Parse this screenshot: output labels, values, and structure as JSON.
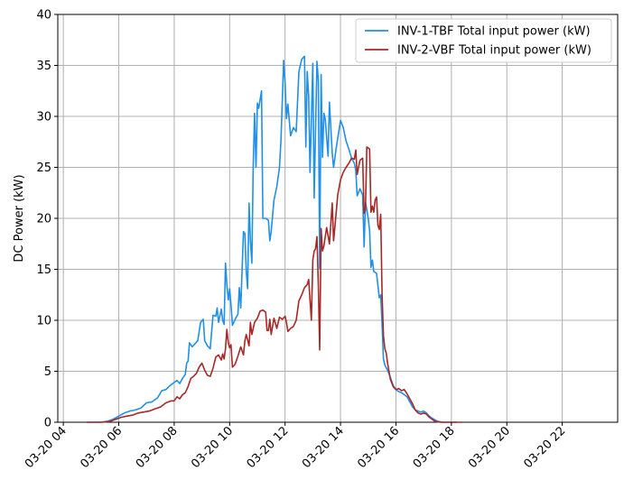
{
  "chart_data": {
    "type": "line",
    "ylabel": "DC Power (kW)",
    "xlabel": "",
    "x_unit": "hour of day (2020-03-20)",
    "xlim": [
      3.8,
      24.0
    ],
    "ylim": [
      0,
      40
    ],
    "yticks": [
      0,
      5,
      10,
      15,
      20,
      25,
      30,
      35,
      40
    ],
    "xticks": [
      {
        "value": 4,
        "label": "03-20 04"
      },
      {
        "value": 6,
        "label": "03-20 06"
      },
      {
        "value": 8,
        "label": "03-20 08"
      },
      {
        "value": 10,
        "label": "03-20 10"
      },
      {
        "value": 12,
        "label": "03-20 12"
      },
      {
        "value": 14,
        "label": "03-20 14"
      },
      {
        "value": 16,
        "label": "03-20 16"
      },
      {
        "value": 18,
        "label": "03-20 18"
      },
      {
        "value": 20,
        "label": "03-20 20"
      },
      {
        "value": 22,
        "label": "03-20 22"
      }
    ],
    "grid": true,
    "legend_position": "upper-right",
    "series": [
      {
        "name": "INV-1-TBF Total input power (kW)",
        "color": "#2090e8",
        "points": [
          [
            4.85,
            0
          ],
          [
            5.3,
            0
          ],
          [
            5.6,
            0.1
          ],
          [
            5.8,
            0.3
          ],
          [
            6.0,
            0.6
          ],
          [
            6.2,
            0.9
          ],
          [
            6.4,
            1.1
          ],
          [
            6.6,
            1.2
          ],
          [
            6.8,
            1.4
          ],
          [
            7.0,
            1.9
          ],
          [
            7.2,
            2.0
          ],
          [
            7.4,
            2.4
          ],
          [
            7.55,
            3.1
          ],
          [
            7.7,
            3.2
          ],
          [
            7.85,
            3.6
          ],
          [
            8.0,
            3.9
          ],
          [
            8.1,
            4.1
          ],
          [
            8.2,
            3.8
          ],
          [
            8.3,
            4.3
          ],
          [
            8.4,
            4.7
          ],
          [
            8.45,
            5.8
          ],
          [
            8.5,
            6.0
          ],
          [
            8.55,
            7.8
          ],
          [
            8.65,
            7.4
          ],
          [
            8.75,
            7.7
          ],
          [
            8.85,
            8.0
          ],
          [
            8.95,
            9.8
          ],
          [
            9.05,
            10.1
          ],
          [
            9.1,
            8.0
          ],
          [
            9.2,
            7.5
          ],
          [
            9.3,
            7.2
          ],
          [
            9.4,
            10.5
          ],
          [
            9.5,
            10.4
          ],
          [
            9.55,
            11.2
          ],
          [
            9.6,
            9.8
          ],
          [
            9.7,
            11.1
          ],
          [
            9.75,
            10.0
          ],
          [
            9.8,
            9.6
          ],
          [
            9.85,
            15.6
          ],
          [
            9.9,
            13.5
          ],
          [
            9.95,
            12.0
          ],
          [
            10.0,
            13.1
          ],
          [
            10.05,
            11.5
          ],
          [
            10.1,
            9.5
          ],
          [
            10.2,
            10.1
          ],
          [
            10.3,
            10.6
          ],
          [
            10.35,
            13.2
          ],
          [
            10.4,
            11.2
          ],
          [
            10.5,
            18.7
          ],
          [
            10.55,
            18.5
          ],
          [
            10.6,
            14.8
          ],
          [
            10.65,
            13.1
          ],
          [
            10.7,
            21.5
          ],
          [
            10.75,
            17.8
          ],
          [
            10.8,
            15.6
          ],
          [
            10.85,
            25.1
          ],
          [
            10.9,
            30.3
          ],
          [
            10.95,
            25.0
          ],
          [
            11.0,
            31.3
          ],
          [
            11.05,
            30.8
          ],
          [
            11.15,
            32.5
          ],
          [
            11.2,
            20.0
          ],
          [
            11.3,
            20.0
          ],
          [
            11.4,
            19.8
          ],
          [
            11.45,
            17.8
          ],
          [
            11.5,
            18.7
          ],
          [
            11.6,
            21.8
          ],
          [
            11.7,
            23.1
          ],
          [
            11.8,
            25.0
          ],
          [
            11.85,
            27.6
          ],
          [
            11.9,
            31.5
          ],
          [
            11.95,
            35.5
          ],
          [
            12.0,
            33.3
          ],
          [
            12.05,
            29.8
          ],
          [
            12.1,
            31.2
          ],
          [
            12.2,
            28.1
          ],
          [
            12.3,
            28.9
          ],
          [
            12.4,
            28.5
          ],
          [
            12.5,
            34.4
          ],
          [
            12.6,
            35.6
          ],
          [
            12.7,
            35.9
          ],
          [
            12.75,
            27.0
          ],
          [
            12.8,
            34.4
          ],
          [
            12.85,
            32.0
          ],
          [
            12.9,
            24.5
          ],
          [
            13.0,
            35.2
          ],
          [
            13.05,
            22.0
          ],
          [
            13.1,
            28.5
          ],
          [
            13.15,
            35.4
          ],
          [
            13.2,
            33.5
          ],
          [
            13.25,
            15.1
          ],
          [
            13.3,
            34.1
          ],
          [
            13.35,
            26.0
          ],
          [
            13.4,
            30.3
          ],
          [
            13.45,
            29.7
          ],
          [
            13.55,
            26.1
          ],
          [
            13.6,
            31.4
          ],
          [
            13.7,
            26.4
          ],
          [
            13.75,
            25.0
          ],
          [
            13.85,
            27.0
          ],
          [
            14.0,
            29.6
          ],
          [
            14.1,
            28.9
          ],
          [
            14.2,
            27.6
          ],
          [
            14.3,
            26.8
          ],
          [
            14.4,
            25.9
          ],
          [
            14.5,
            25.4
          ],
          [
            14.55,
            24.7
          ],
          [
            14.6,
            22.2
          ],
          [
            14.7,
            22.9
          ],
          [
            14.8,
            22.3
          ],
          [
            14.85,
            17.2
          ],
          [
            14.9,
            21.6
          ],
          [
            15.0,
            20.0
          ],
          [
            15.05,
            18.8
          ],
          [
            15.1,
            15.2
          ],
          [
            15.15,
            15.9
          ],
          [
            15.2,
            14.8
          ],
          [
            15.3,
            14.6
          ],
          [
            15.4,
            12.2
          ],
          [
            15.45,
            12.5
          ],
          [
            15.5,
            9.6
          ],
          [
            15.55,
            6.2
          ],
          [
            15.6,
            5.6
          ],
          [
            15.7,
            5.1
          ],
          [
            15.8,
            4.4
          ],
          [
            15.9,
            3.6
          ],
          [
            16.0,
            3.2
          ],
          [
            16.1,
            3.0
          ],
          [
            16.2,
            2.9
          ],
          [
            16.3,
            2.7
          ],
          [
            16.4,
            2.5
          ],
          [
            16.5,
            2.0
          ],
          [
            16.6,
            1.5
          ],
          [
            16.7,
            1.2
          ],
          [
            16.8,
            1.1
          ],
          [
            16.9,
            1.0
          ],
          [
            17.0,
            1.1
          ],
          [
            17.1,
            0.9
          ],
          [
            17.2,
            0.6
          ],
          [
            17.3,
            0.4
          ],
          [
            17.5,
            0.1
          ],
          [
            17.7,
            0
          ],
          [
            18.2,
            0
          ]
        ]
      },
      {
        "name": "INV-2-VBF Total input power (kW)",
        "color": "#a82828",
        "points": [
          [
            4.85,
            0
          ],
          [
            5.4,
            0
          ],
          [
            5.7,
            0.1
          ],
          [
            5.9,
            0.3
          ],
          [
            6.1,
            0.5
          ],
          [
            6.3,
            0.6
          ],
          [
            6.5,
            0.7
          ],
          [
            6.7,
            0.9
          ],
          [
            6.9,
            1.0
          ],
          [
            7.1,
            1.1
          ],
          [
            7.3,
            1.3
          ],
          [
            7.5,
            1.5
          ],
          [
            7.7,
            1.9
          ],
          [
            7.9,
            2.1
          ],
          [
            8.0,
            2.1
          ],
          [
            8.1,
            2.5
          ],
          [
            8.2,
            2.3
          ],
          [
            8.3,
            2.7
          ],
          [
            8.4,
            2.9
          ],
          [
            8.5,
            3.5
          ],
          [
            8.6,
            4.3
          ],
          [
            8.7,
            4.5
          ],
          [
            8.8,
            4.8
          ],
          [
            8.9,
            5.4
          ],
          [
            9.0,
            5.8
          ],
          [
            9.1,
            5.1
          ],
          [
            9.2,
            4.6
          ],
          [
            9.3,
            4.5
          ],
          [
            9.4,
            5.3
          ],
          [
            9.5,
            6.4
          ],
          [
            9.6,
            6.6
          ],
          [
            9.7,
            6.1
          ],
          [
            9.75,
            6.7
          ],
          [
            9.8,
            6.2
          ],
          [
            9.85,
            7.2
          ],
          [
            9.9,
            9.1
          ],
          [
            9.95,
            7.8
          ],
          [
            10.0,
            7.3
          ],
          [
            10.05,
            7.6
          ],
          [
            10.1,
            5.4
          ],
          [
            10.2,
            5.7
          ],
          [
            10.3,
            6.5
          ],
          [
            10.4,
            7.4
          ],
          [
            10.5,
            6.6
          ],
          [
            10.55,
            8.0
          ],
          [
            10.6,
            8.6
          ],
          [
            10.7,
            7.5
          ],
          [
            10.75,
            9.8
          ],
          [
            10.8,
            8.6
          ],
          [
            10.9,
            9.8
          ],
          [
            11.0,
            10.2
          ],
          [
            11.1,
            10.9
          ],
          [
            11.2,
            11.0
          ],
          [
            11.3,
            10.8
          ],
          [
            11.35,
            9.0
          ],
          [
            11.4,
            9.0
          ],
          [
            11.45,
            10.1
          ],
          [
            11.5,
            8.6
          ],
          [
            11.6,
            10.2
          ],
          [
            11.7,
            9.2
          ],
          [
            11.8,
            10.3
          ],
          [
            11.9,
            10.1
          ],
          [
            12.0,
            10.4
          ],
          [
            12.05,
            9.8
          ],
          [
            12.1,
            8.9
          ],
          [
            12.2,
            9.2
          ],
          [
            12.3,
            9.4
          ],
          [
            12.4,
            10.0
          ],
          [
            12.5,
            11.9
          ],
          [
            12.6,
            12.5
          ],
          [
            12.7,
            13.2
          ],
          [
            12.8,
            13.5
          ],
          [
            12.85,
            14.0
          ],
          [
            12.9,
            12.0
          ],
          [
            12.95,
            10.0
          ],
          [
            13.0,
            15.9
          ],
          [
            13.05,
            16.8
          ],
          [
            13.1,
            17.0
          ],
          [
            13.15,
            18.2
          ],
          [
            13.2,
            13.5
          ],
          [
            13.25,
            7.1
          ],
          [
            13.3,
            19.0
          ],
          [
            13.35,
            16.8
          ],
          [
            13.4,
            17.3
          ],
          [
            13.5,
            19.1
          ],
          [
            13.6,
            17.5
          ],
          [
            13.7,
            21.5
          ],
          [
            13.75,
            17.8
          ],
          [
            13.8,
            19.2
          ],
          [
            13.9,
            22.3
          ],
          [
            14.0,
            23.8
          ],
          [
            14.1,
            24.5
          ],
          [
            14.2,
            25.0
          ],
          [
            14.3,
            25.4
          ],
          [
            14.4,
            25.9
          ],
          [
            14.5,
            25.8
          ],
          [
            14.55,
            26.7
          ],
          [
            14.6,
            24.3
          ],
          [
            14.7,
            25.7
          ],
          [
            14.8,
            25.9
          ],
          [
            14.85,
            20.5
          ],
          [
            14.9,
            21.0
          ],
          [
            14.95,
            27.0
          ],
          [
            15.05,
            26.8
          ],
          [
            15.1,
            20.6
          ],
          [
            15.15,
            21.2
          ],
          [
            15.2,
            20.6
          ],
          [
            15.25,
            21.8
          ],
          [
            15.3,
            22.1
          ],
          [
            15.35,
            19.3
          ],
          [
            15.4,
            18.9
          ],
          [
            15.45,
            20.4
          ],
          [
            15.5,
            12.5
          ],
          [
            15.55,
            8.5
          ],
          [
            15.6,
            7.2
          ],
          [
            15.65,
            6.8
          ],
          [
            15.7,
            5.8
          ],
          [
            15.8,
            4.2
          ],
          [
            15.9,
            3.5
          ],
          [
            16.0,
            3.2
          ],
          [
            16.1,
            3.3
          ],
          [
            16.2,
            3.1
          ],
          [
            16.3,
            3.2
          ],
          [
            16.4,
            2.8
          ],
          [
            16.5,
            2.3
          ],
          [
            16.6,
            1.8
          ],
          [
            16.7,
            1.2
          ],
          [
            16.8,
            0.9
          ],
          [
            16.9,
            0.8
          ],
          [
            17.0,
            0.9
          ],
          [
            17.1,
            0.8
          ],
          [
            17.2,
            0.5
          ],
          [
            17.3,
            0.3
          ],
          [
            17.4,
            0.1
          ],
          [
            17.6,
            0
          ],
          [
            18.4,
            0
          ]
        ]
      }
    ]
  }
}
